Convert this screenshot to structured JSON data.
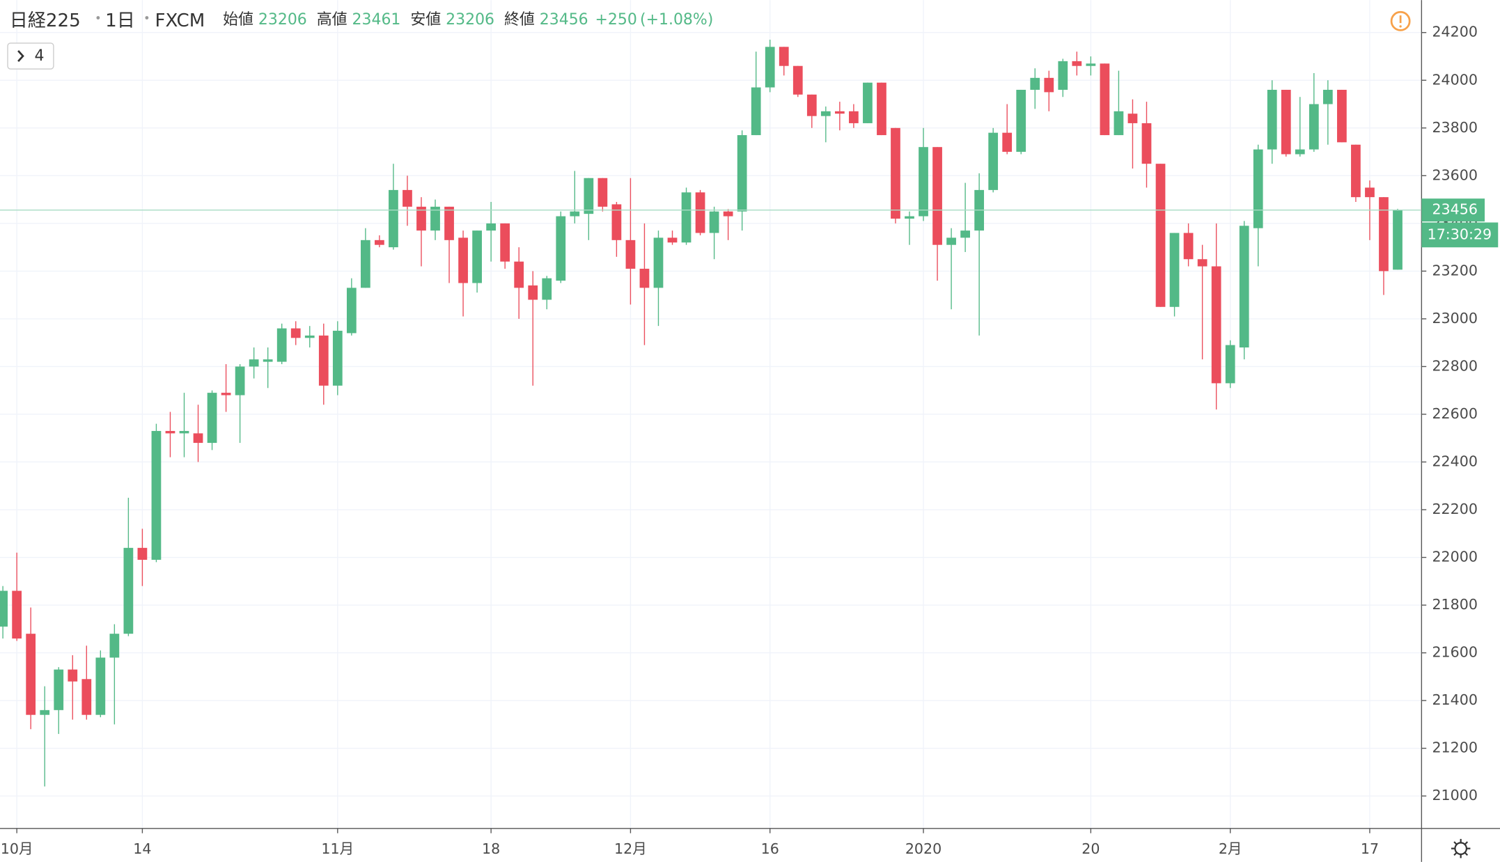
{
  "header": {
    "symbol": "日経225",
    "interval": "1日",
    "source": "FXCM",
    "open_label": "始値",
    "open": 23206,
    "high_label": "高値",
    "high": 23461,
    "low_label": "安値",
    "low": 23206,
    "close_label": "終値",
    "close": 23456,
    "change": "+250",
    "change_pct": "(+1.08%)"
  },
  "legend_button": "4",
  "countdown": "17:30:29",
  "chart_data": {
    "type": "candlestick",
    "up_color": "#53b987",
    "down_color": "#eb4d5c",
    "categories": [
      null,
      "10月",
      null,
      null,
      null,
      null,
      null,
      null,
      null,
      null,
      "14",
      null,
      null,
      null,
      null,
      null,
      null,
      null,
      null,
      null,
      null,
      null,
      null,
      null,
      "11月",
      null,
      null,
      null,
      null,
      null,
      null,
      null,
      null,
      null,
      null,
      "18",
      null,
      null,
      null,
      null,
      null,
      null,
      null,
      null,
      null,
      "12月",
      null,
      null,
      null,
      null,
      null,
      null,
      null,
      null,
      null,
      "16",
      null,
      null,
      null,
      null,
      null,
      null,
      null,
      null,
      null,
      null,
      "2020",
      null,
      null,
      null,
      null,
      null,
      null,
      null,
      null,
      null,
      null,
      null,
      "20",
      null,
      null,
      null,
      null,
      null,
      null,
      null,
      null,
      null,
      "2月",
      null,
      null,
      null,
      null,
      null,
      null,
      null,
      null,
      null,
      "17",
      null,
      null
    ],
    "open": [
      21710,
      21860,
      21680,
      21340,
      21360,
      21530,
      21490,
      21340,
      21580,
      21680,
      22040,
      21990,
      22530,
      22520,
      22520,
      22480,
      22690,
      22680,
      22800,
      22820,
      22820,
      22960,
      22920,
      22930,
      22720,
      22940,
      23130,
      23330,
      23300,
      23540,
      23470,
      23370,
      23470,
      23340,
      23150,
      23370,
      23400,
      23240,
      23140,
      23080,
      23160,
      23430,
      23440,
      23590,
      23480,
      23330,
      23210,
      23130,
      23340,
      23320,
      23530,
      23360,
      23450,
      23450,
      23770,
      23970,
      24140,
      24060,
      23940,
      23850,
      23870,
      23870,
      23820,
      23990,
      23800,
      23420,
      23430,
      23720,
      23310,
      23340,
      23370,
      23540,
      23780,
      23700,
      23960,
      24010,
      23960,
      24080,
      24060,
      24070,
      23770,
      23860,
      23820,
      23650,
      23050,
      23360,
      23250,
      23220,
      22730,
      22880,
      23380,
      23710,
      23960,
      23690,
      23710,
      23900,
      23960,
      23730,
      23550,
      23510,
      23206
    ],
    "high": [
      21880,
      22020,
      21790,
      21460,
      21540,
      21590,
      21630,
      21610,
      21720,
      22250,
      22120,
      22560,
      22610,
      22690,
      22640,
      22700,
      22810,
      22810,
      22880,
      22880,
      22980,
      22990,
      22970,
      22980,
      22990,
      23170,
      23380,
      23350,
      23650,
      23600,
      23510,
      23500,
      23470,
      23370,
      23370,
      23490,
      23400,
      23300,
      23200,
      23180,
      23450,
      23620,
      23590,
      23590,
      23490,
      23590,
      23400,
      23370,
      23370,
      23550,
      23540,
      23470,
      23460,
      23790,
      24120,
      24170,
      24140,
      24060,
      23940,
      23890,
      23910,
      23900,
      23990,
      23990,
      23800,
      23450,
      23800,
      23720,
      23380,
      23570,
      23610,
      23800,
      23900,
      23960,
      24050,
      24040,
      24090,
      24120,
      24100,
      24070,
      24040,
      23920,
      23910,
      23650,
      23360,
      23400,
      23310,
      23400,
      22910,
      23410,
      23730,
      24000,
      23960,
      23930,
      24030,
      24000,
      23960,
      23730,
      23580,
      23510,
      23461
    ],
    "low": [
      21660,
      21650,
      21280,
      21040,
      21260,
      21320,
      21320,
      21330,
      21300,
      21670,
      21880,
      21980,
      22420,
      22420,
      22400,
      22450,
      22610,
      22480,
      22750,
      22710,
      22810,
      22890,
      22880,
      22640,
      22680,
      22930,
      23130,
      23300,
      23290,
      23390,
      23220,
      23330,
      23150,
      23010,
      23110,
      23240,
      23210,
      23000,
      22720,
      23040,
      23150,
      23400,
      23330,
      23450,
      23260,
      23060,
      22890,
      22970,
      23310,
      23310,
      23350,
      23250,
      23330,
      23370,
      23770,
      23950,
      24020,
      23930,
      23800,
      23740,
      23790,
      23800,
      23820,
      23770,
      23400,
      23310,
      23410,
      23160,
      23040,
      23280,
      22930,
      23530,
      23690,
      23690,
      23880,
      23870,
      23930,
      24020,
      24020,
      23770,
      23770,
      23630,
      23550,
      23050,
      23010,
      23220,
      22830,
      22620,
      22710,
      22830,
      23220,
      23650,
      23680,
      23680,
      23700,
      23730,
      23740,
      23490,
      23330,
      23100,
      23206
    ],
    "close": [
      21860,
      21660,
      21340,
      21360,
      21530,
      21480,
      21340,
      21580,
      21680,
      22040,
      21990,
      22530,
      22520,
      22530,
      22480,
      22690,
      22680,
      22800,
      22830,
      22830,
      22960,
      22920,
      22930,
      22720,
      22950,
      23130,
      23330,
      23310,
      23540,
      23470,
      23370,
      23470,
      23330,
      23150,
      23370,
      23400,
      23240,
      23130,
      23080,
      23170,
      23430,
      23450,
      23590,
      23470,
      23330,
      23210,
      23130,
      23340,
      23320,
      23530,
      23360,
      23450,
      23430,
      23770,
      23970,
      24140,
      24060,
      23940,
      23850,
      23870,
      23860,
      23820,
      23990,
      23770,
      23420,
      23430,
      23720,
      23310,
      23340,
      23370,
      23540,
      23780,
      23700,
      23960,
      24010,
      23950,
      24080,
      24060,
      24070,
      23770,
      23870,
      23820,
      23650,
      23050,
      23360,
      23250,
      23220,
      22730,
      22890,
      23390,
      23710,
      23960,
      23690,
      23710,
      23900,
      23960,
      23740,
      23510,
      23510,
      23200,
      23456
    ],
    "ylim": [
      20864,
      24336
    ],
    "yticks": [
      21000,
      21200,
      21400,
      21600,
      21800,
      22000,
      22200,
      22400,
      22600,
      22800,
      23000,
      23200,
      23400,
      23600,
      23800,
      24000,
      24200
    ],
    "last_price": 23456,
    "grid": true
  }
}
